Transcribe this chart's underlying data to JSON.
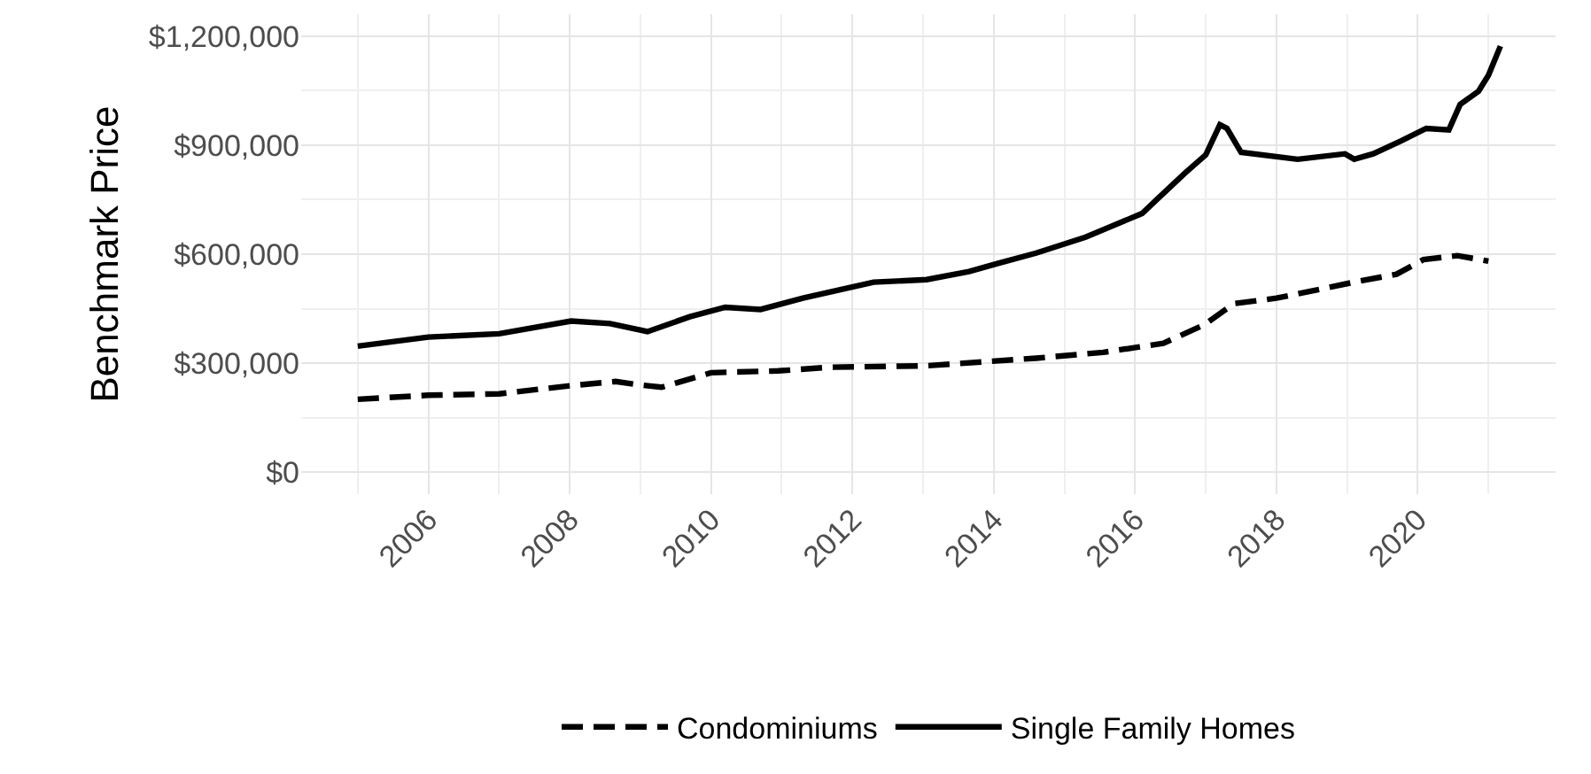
{
  "chart_data": {
    "type": "line",
    "ylabel": "Benchmark Price",
    "xlim": [
      2004.2,
      2021.95
    ],
    "xticks": [
      2006,
      2008,
      2010,
      2012,
      2014,
      2016,
      2018,
      2020
    ],
    "ylim": [
      -60000,
      1260000
    ],
    "yticks": [
      {
        "value": 0,
        "label": "$0"
      },
      {
        "value": 300000,
        "label": "$300,000"
      },
      {
        "value": 600000,
        "label": "$600,000"
      },
      {
        "value": 900000,
        "label": "$900,000"
      },
      {
        "value": 1200000,
        "label": "$1,200,000"
      }
    ],
    "grid": true,
    "legend": "bottom",
    "series": [
      {
        "name": "Condominiums",
        "color": "#000000",
        "line_style": "dashed",
        "x": [
          2005,
          2006,
          2007,
          2008,
          2008.65,
          2008.97,
          2009.3,
          2010,
          2010.95,
          2011.67,
          2013.05,
          2014.6,
          2015.55,
          2016.4,
          2016.98,
          2017.4,
          2018,
          2019.1,
          2019.7,
          2020.08,
          2020.56,
          2021
        ],
        "values": [
          201000,
          212000,
          216000,
          238000,
          250000,
          241000,
          234000,
          274000,
          279000,
          289000,
          293000,
          314000,
          330000,
          355000,
          406000,
          464000,
          479000,
          523000,
          545000,
          585000,
          596000,
          581000
        ]
      },
      {
        "name": "Single Family Homes",
        "color": "#000000",
        "line_style": "solid",
        "x": [
          2005,
          2006,
          2007,
          2008.02,
          2008.57,
          2009.1,
          2009.7,
          2010.2,
          2010.7,
          2011.3,
          2011.8,
          2012.3,
          2013.05,
          2013.65,
          2014.05,
          2014.6,
          2015.3,
          2016.1,
          2016.3,
          2016.7,
          2017,
          2017.2,
          2017.3,
          2017.5,
          2018.3,
          2018.97,
          2019.1,
          2019.37,
          2019.77,
          2020.12,
          2020.44,
          2020.6,
          2020.86,
          2021,
          2021.17
        ],
        "values": [
          347000,
          372000,
          381000,
          416000,
          409000,
          387000,
          428000,
          454000,
          448000,
          479000,
          501000,
          523000,
          530000,
          552000,
          574000,
          603000,
          647000,
          712000,
          749000,
          822000,
          873000,
          956000,
          946000,
          880000,
          861000,
          876000,
          861000,
          876000,
          912000,
          946000,
          942000,
          1012000,
          1048000,
          1092000,
          1172000
        ]
      }
    ]
  }
}
